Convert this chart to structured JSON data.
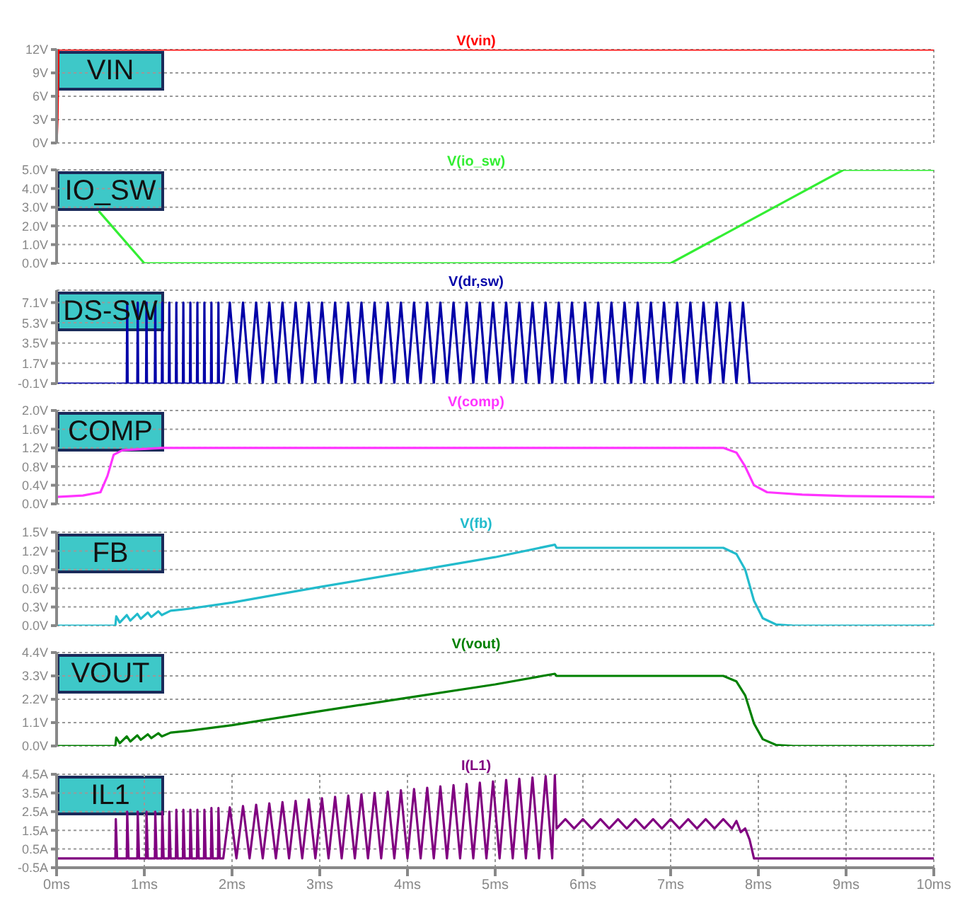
{
  "chart_data": [
    {
      "type": "line",
      "annotations": [
        "VIN"
      ],
      "xlim": [
        0,
        10
      ],
      "xticks": [
        {
          "value": 0,
          "label": null
        },
        {
          "value": 1,
          "label": null
        },
        {
          "value": 2,
          "label": null
        },
        {
          "value": 3,
          "label": null
        },
        {
          "value": 4,
          "label": null
        },
        {
          "value": 5,
          "label": null
        },
        {
          "value": 6,
          "label": null
        },
        {
          "value": 7,
          "label": null
        },
        {
          "value": 8,
          "label": null
        },
        {
          "value": 9,
          "label": null
        },
        {
          "value": 10,
          "label": null
        }
      ],
      "tick_labels": "y",
      "ylim": [
        0,
        12
      ],
      "yticks": [
        {
          "value": 0,
          "label": "0V"
        },
        {
          "value": 3,
          "label": "3V"
        },
        {
          "value": 6,
          "label": "6V"
        },
        {
          "value": 9,
          "label": "9V"
        },
        {
          "value": 12,
          "label": "12V"
        }
      ],
      "grid": true,
      "legend": "top",
      "marker": "none",
      "line_style": "solid",
      "series": [
        {
          "name": "V(vin)",
          "color": "#ff0000",
          "x": [
            0,
            0.01,
            0.015,
            0.02,
            10
          ],
          "values": [
            0,
            3,
            7,
            12,
            12
          ]
        }
      ]
    },
    {
      "type": "line",
      "annotations": [
        "IO_SW"
      ],
      "xlim": [
        0,
        10
      ],
      "xticks": [
        {
          "value": 0,
          "label": null
        },
        {
          "value": 1,
          "label": null
        },
        {
          "value": 2,
          "label": null
        },
        {
          "value": 3,
          "label": null
        },
        {
          "value": 4,
          "label": null
        },
        {
          "value": 5,
          "label": null
        },
        {
          "value": 6,
          "label": null
        },
        {
          "value": 7,
          "label": null
        },
        {
          "value": 8,
          "label": null
        },
        {
          "value": 9,
          "label": null
        },
        {
          "value": 10,
          "label": null
        }
      ],
      "tick_labels": "y",
      "ylim": [
        0,
        5
      ],
      "yticks": [
        {
          "value": 0,
          "label": "0.0V"
        },
        {
          "value": 1,
          "label": "1.0V"
        },
        {
          "value": 2,
          "label": "2.0V"
        },
        {
          "value": 3,
          "label": "3.0V"
        },
        {
          "value": 4,
          "label": "4.0V"
        },
        {
          "value": 5,
          "label": "5.0V"
        }
      ],
      "grid": true,
      "legend": "top",
      "marker": "none",
      "line_style": "solid",
      "series": [
        {
          "name": "V(io_sw)",
          "color": "#33ee33",
          "x": [
            0.48,
            1.0,
            7.0,
            8.97,
            10
          ],
          "values": [
            2.8,
            0,
            0,
            5,
            5
          ]
        }
      ]
    },
    {
      "type": "line",
      "annotations": [
        "DS-SW"
      ],
      "xlim": [
        0,
        10
      ],
      "xticks": [
        {
          "value": 0,
          "label": null
        },
        {
          "value": 1,
          "label": null
        },
        {
          "value": 2,
          "label": null
        },
        {
          "value": 3,
          "label": null
        },
        {
          "value": 4,
          "label": null
        },
        {
          "value": 5,
          "label": null
        },
        {
          "value": 6,
          "label": null
        },
        {
          "value": 7,
          "label": null
        },
        {
          "value": 8,
          "label": null
        },
        {
          "value": 9,
          "label": null
        },
        {
          "value": 10,
          "label": null
        }
      ],
      "tick_labels": "y",
      "ylim": [
        -0.1,
        8.2
      ],
      "yticks": [
        {
          "value": -0.1,
          "label": "-0.1V"
        },
        {
          "value": 1.7,
          "label": "1.7V"
        },
        {
          "value": 3.5,
          "label": "3.5V"
        },
        {
          "value": 5.3,
          "label": "5.3V"
        },
        {
          "value": 7.1,
          "label": "7.1V"
        }
      ],
      "grid": true,
      "legend": "top",
      "marker": "none",
      "line_style": "solid",
      "series": [
        {
          "name": "V(dr,sw)",
          "color": "#0000a8",
          "x": [
            0,
            0.67,
            0.675,
            0.68,
            0.8,
            0.805,
            0.81,
            0.92,
            0.925,
            0.93,
            1.02,
            1.025,
            1.03,
            1.12,
            1.125,
            1.13,
            1.2,
            1.205,
            1.21,
            1.28,
            1.285,
            1.29,
            1.36,
            1.365,
            1.37,
            1.44,
            1.445,
            1.45,
            1.52,
            1.525,
            1.53,
            1.6,
            1.605,
            1.61,
            1.68,
            1.685,
            1.69,
            1.76,
            1.765,
            1.77,
            1.84,
            1.845,
            1.85,
            1.9,
            1.975,
            2.05,
            2.125,
            2.2,
            2.275,
            2.35,
            2.425,
            2.5,
            2.575,
            2.65,
            2.725,
            2.8,
            2.875,
            2.95,
            3.025,
            3.1,
            3.175,
            3.25,
            3.325,
            3.4,
            3.475,
            3.55,
            3.625,
            3.7,
            3.775,
            3.85,
            3.925,
            4,
            4.075,
            4.15,
            4.225,
            4.3,
            4.375,
            4.45,
            4.525,
            4.6,
            4.675,
            4.75,
            4.825,
            4.9,
            4.975,
            5.05,
            5.125,
            5.2,
            5.275,
            5.35,
            5.425,
            5.5,
            5.575,
            5.65,
            5.725,
            5.8,
            5.875,
            5.95,
            6.025,
            6.1,
            6.175,
            6.25,
            6.325,
            6.4,
            6.475,
            6.55,
            6.625,
            6.7,
            6.775,
            6.85,
            6.925,
            7,
            7.075,
            7.15,
            7.225,
            7.3,
            7.375,
            7.45,
            7.525,
            7.6,
            7.675,
            7.75,
            7.825,
            7.9,
            7.94,
            10
          ],
          "values": [
            -0.1,
            -0.1,
            null,
            -0.1,
            -0.1,
            7.1,
            -0.1,
            -0.1,
            7.1,
            -0.1,
            -0.1,
            7.1,
            -0.1,
            -0.1,
            7.1,
            -0.1,
            -0.1,
            7.1,
            -0.1,
            -0.1,
            7.1,
            -0.1,
            -0.1,
            7.1,
            -0.1,
            -0.1,
            7.1,
            -0.1,
            -0.1,
            7.1,
            -0.1,
            -0.1,
            7.1,
            -0.1,
            -0.1,
            7.1,
            -0.1,
            -0.1,
            7.1,
            -0.1,
            -0.1,
            7.1,
            -0.1,
            -0.1,
            7.1,
            -0.1,
            7.1,
            -0.1,
            7.1,
            -0.1,
            7.1,
            -0.1,
            7.1,
            -0.1,
            7.1,
            -0.1,
            7.1,
            -0.1,
            7.1,
            -0.1,
            7.1,
            -0.1,
            7.1,
            -0.1,
            7.1,
            -0.1,
            7.1,
            -0.1,
            7.1,
            -0.1,
            7.1,
            -0.1,
            7.1,
            -0.1,
            7.1,
            -0.1,
            7.1,
            -0.1,
            7.1,
            -0.1,
            7.1,
            -0.1,
            7.1,
            -0.1,
            7.1,
            -0.1,
            7.1,
            -0.1,
            7.1,
            -0.1,
            7.1,
            -0.1,
            7.1,
            -0.1,
            7.1,
            -0.1,
            7.1,
            -0.1,
            7.1,
            -0.1,
            7.1,
            -0.1,
            7.1,
            -0.1,
            7.1,
            -0.1,
            7.1,
            -0.1,
            7.1,
            -0.1,
            7.1,
            -0.1,
            7.1,
            -0.1,
            7.1,
            -0.1,
            7.1,
            -0.1,
            7.1,
            -0.1,
            7.1,
            -0.1,
            7.1,
            -0.1,
            -0.1,
            -0.1
          ]
        }
      ]
    },
    {
      "type": "line",
      "annotations": [
        "COMP"
      ],
      "xlim": [
        0,
        10
      ],
      "xticks": [
        {
          "value": 0,
          "label": null
        },
        {
          "value": 1,
          "label": null
        },
        {
          "value": 2,
          "label": null
        },
        {
          "value": 3,
          "label": null
        },
        {
          "value": 4,
          "label": null
        },
        {
          "value": 5,
          "label": null
        },
        {
          "value": 6,
          "label": null
        },
        {
          "value": 7,
          "label": null
        },
        {
          "value": 8,
          "label": null
        },
        {
          "value": 9,
          "label": null
        },
        {
          "value": 10,
          "label": null
        }
      ],
      "tick_labels": "y",
      "ylim": [
        0,
        2
      ],
      "yticks": [
        {
          "value": 0,
          "label": "0.0V"
        },
        {
          "value": 0.4,
          "label": "0.4V"
        },
        {
          "value": 0.8,
          "label": "0.8V"
        },
        {
          "value": 1.2,
          "label": "1.2V"
        },
        {
          "value": 1.6,
          "label": "1.6V"
        },
        {
          "value": 2,
          "label": "2.0V"
        }
      ],
      "grid": true,
      "legend": "top",
      "marker": "none",
      "line_style": "solid",
      "series": [
        {
          "name": "V(comp)",
          "color": "#ff33ff",
          "x": [
            0,
            0.3,
            0.5,
            0.58,
            0.65,
            0.75,
            1.2,
            7.6,
            7.75,
            7.85,
            7.95,
            8.1,
            8.5,
            9,
            10
          ],
          "values": [
            0.15,
            0.18,
            0.25,
            0.6,
            1.05,
            1.15,
            1.2,
            1.2,
            1.1,
            0.8,
            0.4,
            0.25,
            0.2,
            0.17,
            0.15
          ]
        }
      ]
    },
    {
      "type": "line",
      "annotations": [
        "FB"
      ],
      "xlim": [
        0,
        10
      ],
      "xticks": [
        {
          "value": 0,
          "label": null
        },
        {
          "value": 1,
          "label": null
        },
        {
          "value": 2,
          "label": null
        },
        {
          "value": 3,
          "label": null
        },
        {
          "value": 4,
          "label": null
        },
        {
          "value": 5,
          "label": null
        },
        {
          "value": 6,
          "label": null
        },
        {
          "value": 7,
          "label": null
        },
        {
          "value": 8,
          "label": null
        },
        {
          "value": 9,
          "label": null
        },
        {
          "value": 10,
          "label": null
        }
      ],
      "tick_labels": "y",
      "ylim": [
        0,
        1.5
      ],
      "yticks": [
        {
          "value": 0,
          "label": "0.0V"
        },
        {
          "value": 0.3,
          "label": "0.3V"
        },
        {
          "value": 0.6,
          "label": "0.6V"
        },
        {
          "value": 0.9,
          "label": "0.9V"
        },
        {
          "value": 1.2,
          "label": "1.2V"
        },
        {
          "value": 1.5,
          "label": "1.5V"
        }
      ],
      "grid": true,
      "legend": "top",
      "marker": "none",
      "line_style": "solid",
      "series": [
        {
          "name": "V(fb)",
          "color": "#22bbcc",
          "x": [
            0,
            0.67,
            0.68,
            0.72,
            0.8,
            0.84,
            0.92,
            0.96,
            1.04,
            1.08,
            1.16,
            1.2,
            1.3,
            1.5,
            2,
            3,
            4,
            5,
            5.68,
            5.7,
            7.6,
            7.75,
            7.85,
            7.95,
            8.05,
            8.2,
            8.4,
            10
          ],
          "values": [
            0,
            0,
            0.15,
            0.05,
            0.17,
            0.08,
            0.19,
            0.11,
            0.21,
            0.14,
            0.23,
            0.17,
            0.24,
            0.27,
            0.37,
            0.62,
            0.86,
            1.1,
            1.3,
            1.25,
            1.25,
            1.15,
            0.9,
            0.4,
            0.12,
            0.02,
            0,
            0
          ]
        }
      ]
    },
    {
      "type": "line",
      "annotations": [
        "VOUT"
      ],
      "xlim": [
        0,
        10
      ],
      "xticks": [
        {
          "value": 0,
          "label": null
        },
        {
          "value": 1,
          "label": null
        },
        {
          "value": 2,
          "label": null
        },
        {
          "value": 3,
          "label": null
        },
        {
          "value": 4,
          "label": null
        },
        {
          "value": 5,
          "label": null
        },
        {
          "value": 6,
          "label": null
        },
        {
          "value": 7,
          "label": null
        },
        {
          "value": 8,
          "label": null
        },
        {
          "value": 9,
          "label": null
        },
        {
          "value": 10,
          "label": null
        }
      ],
      "tick_labels": "y",
      "ylim": [
        0,
        4.4
      ],
      "yticks": [
        {
          "value": 0,
          "label": "0.0V"
        },
        {
          "value": 1.1,
          "label": "1.1V"
        },
        {
          "value": 2.2,
          "label": "2.2V"
        },
        {
          "value": 3.3,
          "label": "3.3V"
        },
        {
          "value": 4.4,
          "label": "4.4V"
        }
      ],
      "grid": true,
      "legend": "top",
      "marker": "none",
      "line_style": "solid",
      "series": [
        {
          "name": "V(vout)",
          "color": "#008000",
          "x": [
            0,
            0.67,
            0.68,
            0.72,
            0.8,
            0.84,
            0.92,
            0.96,
            1.04,
            1.08,
            1.16,
            1.2,
            1.3,
            1.5,
            2,
            3,
            4,
            5,
            5.68,
            5.7,
            7.6,
            7.75,
            7.85,
            7.95,
            8.05,
            8.2,
            8.4,
            10
          ],
          "values": [
            0,
            0,
            0.4,
            0.13,
            0.45,
            0.21,
            0.5,
            0.29,
            0.55,
            0.37,
            0.6,
            0.45,
            0.63,
            0.71,
            0.98,
            1.64,
            2.27,
            2.9,
            3.4,
            3.3,
            3.3,
            3.04,
            2.38,
            1.06,
            0.32,
            0.05,
            0,
            0
          ]
        }
      ]
    },
    {
      "type": "line",
      "annotations": [
        "IL1"
      ],
      "xlim": [
        0,
        10
      ],
      "xticks": [
        {
          "value": 0,
          "label": "0ms"
        },
        {
          "value": 1,
          "label": "1ms"
        },
        {
          "value": 2,
          "label": "2ms"
        },
        {
          "value": 3,
          "label": "3ms"
        },
        {
          "value": 4,
          "label": "4ms"
        },
        {
          "value": 5,
          "label": "5ms"
        },
        {
          "value": 6,
          "label": "6ms"
        },
        {
          "value": 7,
          "label": "7ms"
        },
        {
          "value": 8,
          "label": "8ms"
        },
        {
          "value": 9,
          "label": "9ms"
        },
        {
          "value": 10,
          "label": "10ms"
        }
      ],
      "ylim": [
        -0.5,
        4.5
      ],
      "yticks": [
        {
          "value": -0.5,
          "label": "-0.5A"
        },
        {
          "value": 0.5,
          "label": "0.5A"
        },
        {
          "value": 1.5,
          "label": "1.5A"
        },
        {
          "value": 2.5,
          "label": "2.5A"
        },
        {
          "value": 3.5,
          "label": "3.5A"
        },
        {
          "value": 4.5,
          "label": "4.5A"
        }
      ],
      "grid": true,
      "legend": "top",
      "marker": "none",
      "line_style": "solid",
      "series": [
        {
          "name": "I(L1)",
          "color": "#800080",
          "x": [
            0,
            0.67,
            0.675,
            0.69,
            0.8,
            0.805,
            0.82,
            0.92,
            0.925,
            0.94,
            1.02,
            1.025,
            1.04,
            1.12,
            1.125,
            1.14,
            1.2,
            1.205,
            1.22,
            1.28,
            1.285,
            1.3,
            1.36,
            1.365,
            1.38,
            1.44,
            1.445,
            1.46,
            1.52,
            1.525,
            1.54,
            1.6,
            1.605,
            1.62,
            1.68,
            1.685,
            1.7,
            1.76,
            1.765,
            1.78,
            1.84,
            1.845,
            1.86,
            1.9,
            1.975,
            2.05,
            2.125,
            2.2,
            2.275,
            2.35,
            2.425,
            2.5,
            2.575,
            2.65,
            2.725,
            2.8,
            2.875,
            2.95,
            3.025,
            3.1,
            3.175,
            3.25,
            3.325,
            3.4,
            3.475,
            3.55,
            3.625,
            3.7,
            3.775,
            3.85,
            3.925,
            4,
            4.075,
            4.15,
            4.225,
            4.3,
            4.375,
            4.45,
            4.525,
            4.6,
            4.675,
            4.75,
            4.825,
            4.9,
            4.975,
            5.05,
            5.125,
            5.2,
            5.275,
            5.35,
            5.425,
            5.5,
            5.575,
            5.65,
            5.68,
            5.7,
            5.8,
            5.9,
            6.0,
            6.1,
            6.2,
            6.3,
            6.4,
            6.5,
            6.6,
            6.7,
            6.8,
            6.9,
            7.0,
            7.1,
            7.2,
            7.3,
            7.4,
            7.5,
            7.6,
            7.7,
            7.75,
            7.8,
            7.85,
            7.9,
            7.93,
            7.95,
            10
          ],
          "values": [
            0,
            0,
            2.1,
            0,
            0,
            2.5,
            0,
            0,
            2.5,
            0,
            0,
            2.5,
            0,
            0,
            2.5,
            0,
            0,
            2.5,
            0,
            0,
            2.5,
            0,
            0,
            2.6,
            0,
            0,
            2.6,
            0,
            0,
            2.6,
            0,
            0,
            2.6,
            0,
            0,
            2.6,
            0,
            0,
            2.7,
            0,
            0,
            2.7,
            0,
            0,
            2.73,
            0,
            2.8,
            0,
            2.87,
            0,
            2.94,
            0,
            3.01,
            0,
            3.08,
            0,
            3.15,
            0,
            3.22,
            0,
            3.29,
            0,
            3.36,
            0,
            3.43,
            0,
            3.5,
            0,
            3.57,
            0,
            3.64,
            0,
            3.71,
            0,
            3.78,
            0,
            3.85,
            0,
            3.92,
            0,
            3.98,
            0,
            4.05,
            0,
            4.12,
            0,
            4.19,
            0,
            4.26,
            0,
            4.33,
            0,
            4.4,
            0,
            4.45,
            1.6,
            2.1,
            1.6,
            2.1,
            1.6,
            2.1,
            1.6,
            2.1,
            1.6,
            2.1,
            1.6,
            2.1,
            1.6,
            2.1,
            1.6,
            2.1,
            1.6,
            2.1,
            1.6,
            2.1,
            1.6,
            2.0,
            1.4,
            1.6,
            1.0,
            0.4,
            0,
            0
          ]
        }
      ]
    }
  ]
}
